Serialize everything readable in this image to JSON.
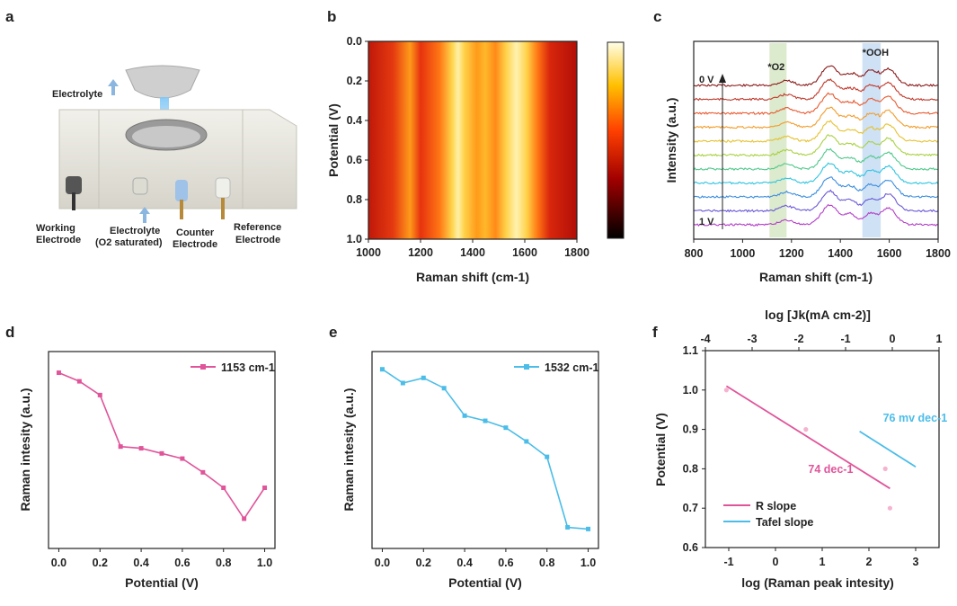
{
  "panel_labels": {
    "a": "a",
    "b": "b",
    "c": "c",
    "d": "d",
    "e": "e",
    "f": "f"
  },
  "apparatus": {
    "labels": {
      "electrolyte_out": "Electrolyte",
      "working_1": "Working",
      "working_2": "Electrode",
      "electrolyte_in_1": "Electrolyte",
      "electrolyte_in_2": "(O2 saturated)",
      "counter_1": "Counter",
      "counter_2": "Electrode",
      "reference_1": "Reference",
      "reference_2": "Electrode"
    },
    "colors": {
      "body": "#e8e6dd",
      "arrow": "#8ab6e0",
      "beam": "#cfe9ff"
    }
  },
  "chart_data": [
    {
      "id": "b",
      "type": "heatmap",
      "xlabel": "Raman shift (cm-1)",
      "ylabel": "Potential (V)",
      "xlim": [
        1000,
        1800
      ],
      "ylim": [
        0.0,
        1.0
      ],
      "xticks": [
        "1000",
        "1200",
        "1400",
        "1600",
        "1800"
      ],
      "yticks": [
        "0.0",
        "0.2",
        "0.4",
        "0.6",
        "0.8",
        "1.0"
      ],
      "colormap": "hot",
      "peaks_cm1": [
        1180,
        1355,
        1430,
        1580,
        1660
      ],
      "colorbar": "present, no tick labels"
    },
    {
      "id": "c",
      "type": "line",
      "xlabel": "Raman shift (cm-1)",
      "ylabel": "Intensity (a.u.)",
      "xlim": [
        800,
        1800
      ],
      "xticks": [
        "800",
        "1000",
        "1200",
        "1400",
        "1600",
        "1800"
      ],
      "top_label": "0 V",
      "bottom_label": "1 V",
      "n_spectra": 11,
      "spectrum_colors": [
        "#8b1a1a",
        "#c0392b",
        "#e8592f",
        "#f39c2a",
        "#e6c22e",
        "#a8d140",
        "#4fc98a",
        "#2ec4e0",
        "#3b8ee0",
        "#6a5ad6",
        "#b23ec7"
      ],
      "annotations": [
        {
          "text": "*O2",
          "band_cm1": [
            1110,
            1180
          ],
          "color": "#d6e6c4"
        },
        {
          "text": "*OOH",
          "band_cm1": [
            1490,
            1565
          ],
          "color": "#c7dcf2"
        }
      ]
    },
    {
      "id": "d",
      "type": "line",
      "xlabel": "Potential (V)",
      "ylabel": "Raman intesity (a.u.)",
      "xlim": [
        -0.05,
        1.05
      ],
      "xticks": [
        "0.0",
        "0.2",
        "0.4",
        "0.6",
        "0.8",
        "1.0"
      ],
      "series": [
        {
          "name": "1153 cm-1",
          "color": "#e0559a",
          "x": [
            0.0,
            0.1,
            0.2,
            0.3,
            0.4,
            0.5,
            0.6,
            0.7,
            0.8,
            0.9,
            1.0
          ],
          "values": [
            0.95,
            0.9,
            0.82,
            0.52,
            0.51,
            0.48,
            0.45,
            0.37,
            0.28,
            0.1,
            0.28
          ]
        }
      ]
    },
    {
      "id": "e",
      "type": "line",
      "xlabel": "Potential (V)",
      "ylabel": "Raman intesity (a.u.)",
      "xlim": [
        -0.05,
        1.05
      ],
      "xticks": [
        "0.0",
        "0.2",
        "0.4",
        "0.6",
        "0.8",
        "1.0"
      ],
      "series": [
        {
          "name": "1532 cm-1",
          "color": "#4bbde8",
          "x": [
            0.0,
            0.1,
            0.2,
            0.3,
            0.4,
            0.5,
            0.6,
            0.7,
            0.8,
            0.9,
            1.0
          ],
          "values": [
            0.97,
            0.89,
            0.92,
            0.86,
            0.7,
            0.67,
            0.63,
            0.55,
            0.46,
            0.05,
            0.04
          ]
        }
      ]
    },
    {
      "id": "f",
      "type": "scatter",
      "xlabel": "log (Raman peak intesity)",
      "ylabel": "Potential (V)",
      "top_xlabel": "log [Jk(mA cm-2)]",
      "xlim": [
        -1.5,
        3.5
      ],
      "ylim": [
        0.6,
        1.1
      ],
      "xticks": [
        "-1",
        "0",
        "1",
        "2",
        "3"
      ],
      "yticks": [
        "0.6",
        "0.7",
        "0.8",
        "0.9",
        "1.0",
        "1.1"
      ],
      "top_xlim": [
        -4,
        1
      ],
      "top_xticks": [
        "-4",
        "-3",
        "-2",
        "-1",
        "0",
        "1"
      ],
      "points": [
        {
          "x": -1.05,
          "y": 1.0,
          "color": "#f5b3d0"
        },
        {
          "x": 0.65,
          "y": 0.9,
          "color": "#f5b3d0"
        },
        {
          "x": 2.35,
          "y": 0.8,
          "color": "#f5b3d0"
        },
        {
          "x": 2.45,
          "y": 0.7,
          "color": "#f5b3d0"
        }
      ],
      "r_line": {
        "x": [
          -1.05,
          2.45
        ],
        "y": [
          1.01,
          0.75
        ],
        "color": "#e0559a"
      },
      "tafel_line": {
        "top_x": [
          -0.7,
          0.5
        ],
        "y": [
          0.895,
          0.805
        ],
        "color": "#4bbde8"
      },
      "annotations": [
        {
          "text": "74 dec-1",
          "x": 0.7,
          "y": 0.79,
          "color": "#e0559a"
        },
        {
          "text": "76 mv dec-1",
          "x": 2.3,
          "y": 0.92,
          "color": "#4bbde8"
        }
      ],
      "legend": [
        {
          "name": "R slope",
          "color": "#e0559a"
        },
        {
          "name": "Tafel slope",
          "color": "#4bbde8"
        }
      ]
    }
  ]
}
